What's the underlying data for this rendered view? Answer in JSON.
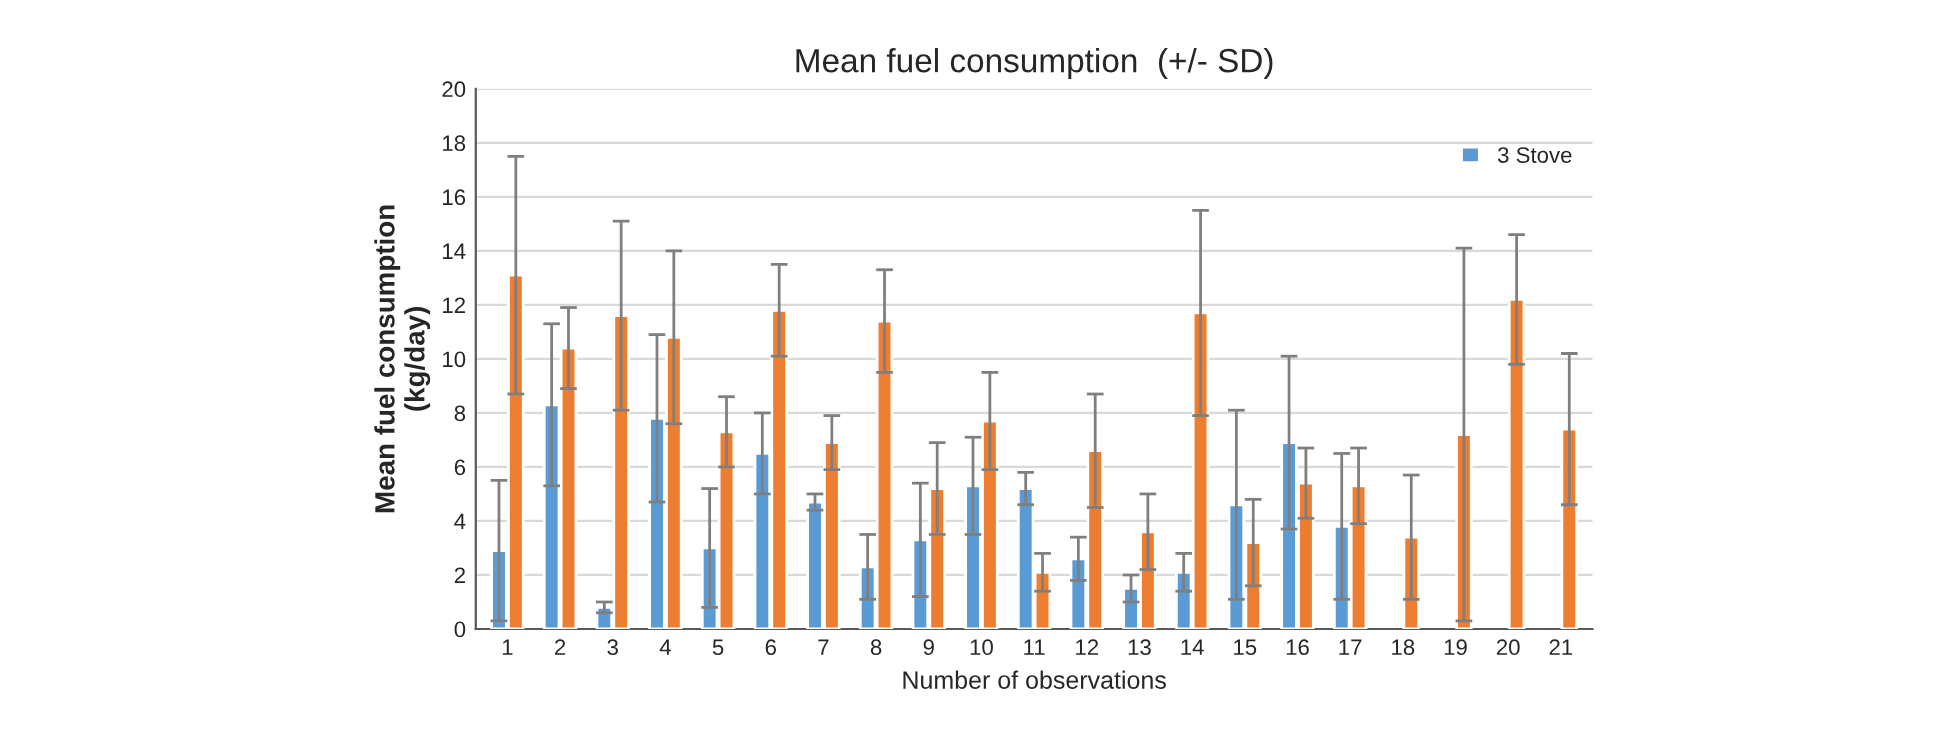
{
  "chart_data": {
    "type": "bar",
    "title": "Mean fuel consumption  (+/- SD)",
    "xlabel": "Number of observations",
    "ylabel": "Mean fuel consumption\n(kg/day)",
    "categories": [
      "1",
      "2",
      "3",
      "4",
      "5",
      "6",
      "7",
      "8",
      "9",
      "10",
      "11",
      "12",
      "13",
      "14",
      "15",
      "16",
      "17",
      "18",
      "19",
      "20",
      "21"
    ],
    "series": [
      {
        "name": "3 Stove",
        "color": "#5b9bd5",
        "values": [
          2.9,
          8.3,
          0.8,
          7.8,
          3.0,
          6.5,
          4.7,
          2.3,
          3.3,
          5.3,
          5.2,
          2.6,
          1.5,
          2.1,
          4.6,
          6.9,
          3.8,
          null,
          null,
          null,
          null
        ],
        "errors": [
          2.6,
          3.0,
          0.2,
          3.1,
          2.2,
          1.5,
          0.3,
          1.2,
          2.1,
          1.8,
          0.6,
          0.8,
          0.5,
          0.7,
          3.5,
          3.2,
          2.7,
          null,
          null,
          null,
          null
        ]
      },
      {
        "color": "#ed7d31",
        "values": [
          13.1,
          10.4,
          11.6,
          10.8,
          7.3,
          11.8,
          6.9,
          11.4,
          5.2,
          7.7,
          2.1,
          6.6,
          3.6,
          11.7,
          3.2,
          5.4,
          5.3,
          3.4,
          7.2,
          12.2,
          7.4
        ],
        "errors": [
          4.4,
          1.5,
          3.5,
          3.2,
          1.3,
          1.7,
          1.0,
          1.9,
          1.7,
          1.8,
          0.7,
          2.1,
          1.4,
          3.8,
          1.6,
          1.3,
          1.4,
          2.3,
          6.9,
          2.4,
          2.8
        ]
      }
    ],
    "ylim": [
      0,
      20
    ],
    "yticks": [
      0,
      2,
      4,
      6,
      8,
      10,
      12,
      14,
      16,
      18,
      20
    ],
    "grid": "y",
    "legend": "top right"
  }
}
